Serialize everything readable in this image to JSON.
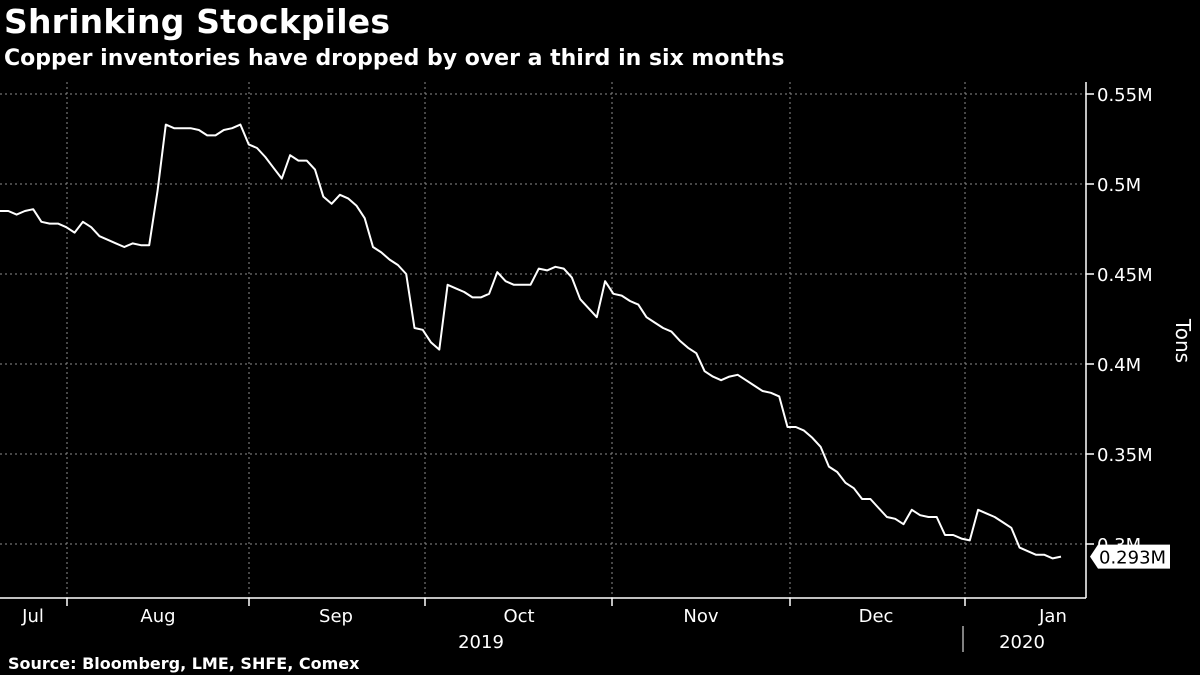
{
  "header": {
    "title": "Shrinking Stockpiles",
    "subtitle": "Copper inventories have dropped by over a third in six months"
  },
  "footer": {
    "source": "Source: Bloomberg, LME, SHFE, Comex"
  },
  "colors": {
    "background": "#000000",
    "line": "#ffffff",
    "grid": "#8c8c8c",
    "text": "#ffffff"
  },
  "chart_data": {
    "type": "line",
    "title": "Shrinking Stockpiles",
    "subtitle": "Copper inventories have dropped by over a third in six months",
    "ylabel": "Tons",
    "y_axis_position": "right",
    "ylim": [
      0.27,
      0.56
    ],
    "y_ticks": [
      0.3,
      0.35,
      0.4,
      0.45,
      0.5,
      0.55
    ],
    "y_tick_labels": [
      "0.3M",
      "0.35M",
      "0.4M",
      "0.45M",
      "0.5M",
      "0.55M"
    ],
    "x_month_labels": [
      "Jul",
      "Aug",
      "Sep",
      "Oct",
      "Nov",
      "Dec",
      "Jan"
    ],
    "x_year_labels": [
      "2019",
      "2020"
    ],
    "grid": true,
    "last_value_label": "0.293M",
    "series": [
      {
        "values": [
          0.485,
          0.485,
          0.483,
          0.485,
          0.486,
          0.479,
          0.478,
          0.478,
          0.476,
          0.473,
          0.479,
          0.476,
          0.471,
          0.469,
          0.467,
          0.465,
          0.467,
          0.466,
          0.466,
          0.496,
          0.533,
          0.531,
          0.531,
          0.531,
          0.53,
          0.527,
          0.527,
          0.53,
          0.531,
          0.533,
          0.522,
          0.52,
          0.515,
          0.509,
          0.503,
          0.516,
          0.513,
          0.513,
          0.508,
          0.493,
          0.489,
          0.494,
          0.492,
          0.488,
          0.481,
          0.465,
          0.462,
          0.458,
          0.455,
          0.45,
          0.42,
          0.419,
          0.412,
          0.408,
          0.444,
          0.442,
          0.44,
          0.437,
          0.437,
          0.439,
          0.451,
          0.446,
          0.444,
          0.444,
          0.444,
          0.453,
          0.452,
          0.454,
          0.453,
          0.448,
          0.436,
          0.431,
          0.426,
          0.446,
          0.439,
          0.438,
          0.435,
          0.433,
          0.426,
          0.423,
          0.42,
          0.418,
          0.413,
          0.409,
          0.406,
          0.396,
          0.393,
          0.391,
          0.393,
          0.394,
          0.391,
          0.388,
          0.385,
          0.384,
          0.382,
          0.365,
          0.365,
          0.363,
          0.359,
          0.354,
          0.343,
          0.34,
          0.334,
          0.331,
          0.325,
          0.325,
          0.32,
          0.315,
          0.314,
          0.311,
          0.319,
          0.316,
          0.315,
          0.315,
          0.305,
          0.305,
          0.303,
          0.302,
          0.319,
          0.317,
          0.315,
          0.312,
          0.309,
          0.298,
          0.296,
          0.294,
          0.294,
          0.292,
          0.293
        ]
      }
    ]
  }
}
